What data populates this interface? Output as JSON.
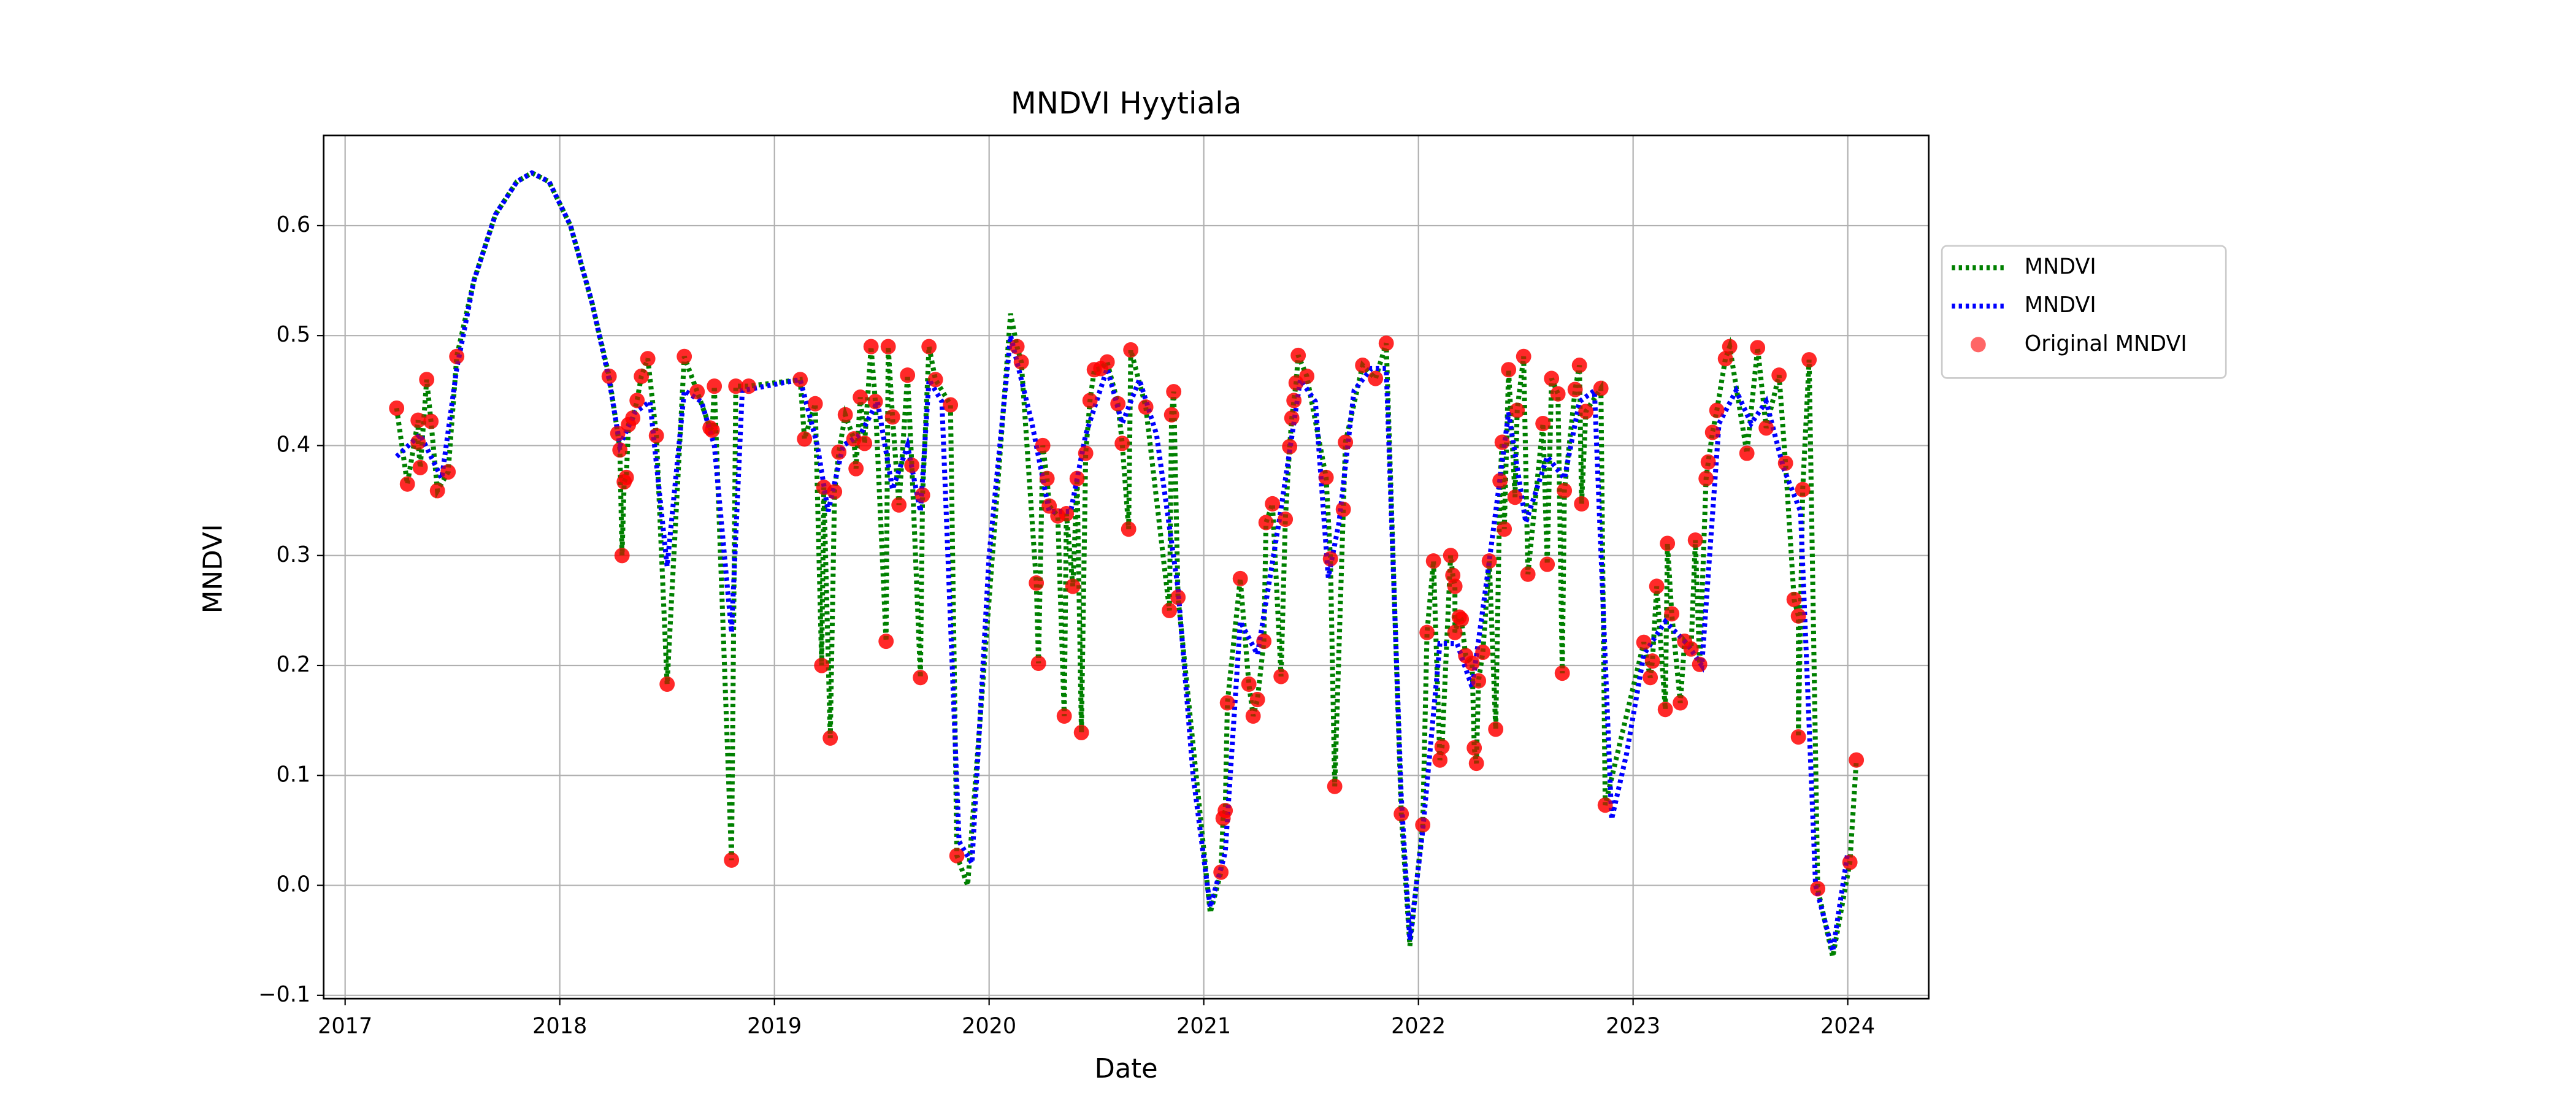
{
  "chart_data": {
    "type": "line",
    "title": "MNDVI Hyytiala",
    "x_label": "Date",
    "y_label": "MNDVI",
    "xlim": [
      2016.9,
      2024.377
    ],
    "xticks": [
      2017,
      2018,
      2019,
      2020,
      2021,
      2022,
      2023,
      2024
    ],
    "ylim": [
      -0.103,
      0.682
    ],
    "yticks": [
      {
        "value": -0.1,
        "label": "−0.1"
      },
      {
        "value": 0,
        "label": "0.0"
      },
      0.1,
      0.2,
      0.3,
      0.4,
      0.5,
      0.6
    ],
    "grid": true,
    "legend": "outside-right",
    "series": [
      {
        "name": "MNDVI",
        "type": "line",
        "color": "#008000",
        "x": [
          2017.24,
          2017.29,
          2017.34,
          2017.34,
          2017.35,
          2017.38,
          2017.4,
          2017.43,
          2017.48,
          2017.52,
          2017.6,
          2017.7,
          2017.8,
          2017.87,
          2017.95,
          2018.05,
          2018.15,
          2018.23,
          2018.27,
          2018.28,
          2018.29,
          2018.3,
          2018.31,
          2018.32,
          2018.34,
          2018.36,
          2018.38,
          2018.41,
          2018.45,
          2018.5,
          2018.58,
          2018.64,
          2018.7,
          2018.71,
          2018.72,
          2018.8,
          2018.82,
          2018.88,
          2019.12,
          2019.14,
          2019.19,
          2019.22,
          2019.23,
          2019.26,
          2019.28,
          2019.3,
          2019.33,
          2019.37,
          2019.38,
          2019.4,
          2019.42,
          2019.45,
          2019.47,
          2019.52,
          2019.53,
          2019.55,
          2019.58,
          2019.62,
          2019.64,
          2019.68,
          2019.69,
          2019.72,
          2019.75,
          2019.82,
          2019.85,
          2019.9,
          2020.1,
          2020.13,
          2020.15,
          2020.22,
          2020.23,
          2020.25,
          2020.27,
          2020.28,
          2020.32,
          2020.35,
          2020.36,
          2020.39,
          2020.41,
          2020.43,
          2020.45,
          2020.47,
          2020.49,
          2020.52,
          2020.55,
          2020.6,
          2020.62,
          2020.65,
          2020.66,
          2020.73,
          2020.84,
          2020.85,
          2020.86,
          2020.88,
          2021.03,
          2021.08,
          2021.09,
          2021.1,
          2021.11,
          2021.17,
          2021.21,
          2021.23,
          2021.25,
          2021.28,
          2021.29,
          2021.32,
          2021.36,
          2021.38,
          2021.4,
          2021.41,
          2021.42,
          2021.43,
          2021.44,
          2021.48,
          2021.57,
          2021.59,
          2021.61,
          2021.65,
          2021.66,
          2021.74,
          2021.8,
          2021.85,
          2021.92,
          2021.96,
          2022.02,
          2022.04,
          2022.07,
          2022.1,
          2022.11,
          2022.15,
          2022.16,
          2022.17,
          2022.17,
          2022.19,
          2022.2,
          2022.22,
          2022.25,
          2022.26,
          2022.27,
          2022.28,
          2022.3,
          2022.33,
          2022.36,
          2022.38,
          2022.39,
          2022.4,
          2022.42,
          2022.45,
          2022.46,
          2022.49,
          2022.51,
          2022.58,
          2022.6,
          2022.62,
          2022.65,
          2022.67,
          2022.68,
          2022.73,
          2022.75,
          2022.76,
          2022.78,
          2022.85,
          2022.87,
          2023.05,
          2023.08,
          2023.09,
          2023.11,
          2023.15,
          2023.16,
          2023.18,
          2023.22,
          2023.24,
          2023.27,
          2023.29,
          2023.31,
          2023.34,
          2023.35,
          2023.37,
          2023.39,
          2023.43,
          2023.45,
          2023.53,
          2023.58,
          2023.62,
          2023.68,
          2023.71,
          2023.75,
          2023.77,
          2023.77,
          2023.79,
          2023.82,
          2023.86,
          2023.93,
          2024.01,
          2024.04
        ],
        "values": [
          0.434,
          0.365,
          0.423,
          0.403,
          0.38,
          0.46,
          0.422,
          0.359,
          0.376,
          0.481,
          0.55,
          0.61,
          0.64,
          0.648,
          0.64,
          0.6,
          0.53,
          0.463,
          0.411,
          0.396,
          0.3,
          0.367,
          0.371,
          0.419,
          0.425,
          0.441,
          0.463,
          0.479,
          0.409,
          0.183,
          0.481,
          0.449,
          0.416,
          0.414,
          0.454,
          0.023,
          0.454,
          0.454,
          0.46,
          0.406,
          0.438,
          0.2,
          0.362,
          0.134,
          0.358,
          0.394,
          0.428,
          0.406,
          0.379,
          0.444,
          0.402,
          0.49,
          0.44,
          0.222,
          0.49,
          0.426,
          0.346,
          0.464,
          0.382,
          0.189,
          0.355,
          0.49,
          0.46,
          0.437,
          0.027,
          0.0,
          0.52,
          0.49,
          0.476,
          0.275,
          0.202,
          0.4,
          0.37,
          0.345,
          0.336,
          0.154,
          0.338,
          0.272,
          0.37,
          0.139,
          0.393,
          0.441,
          0.469,
          0.47,
          0.476,
          0.438,
          0.402,
          0.324,
          0.487,
          0.435,
          0.25,
          0.428,
          0.449,
          0.262,
          -0.025,
          0.012,
          0.061,
          0.068,
          0.166,
          0.279,
          0.183,
          0.154,
          0.169,
          0.222,
          0.33,
          0.347,
          0.19,
          0.333,
          0.399,
          0.425,
          0.441,
          0.457,
          0.482,
          0.463,
          0.371,
          0.297,
          0.09,
          0.342,
          0.403,
          0.473,
          0.461,
          0.493,
          0.065,
          -0.055,
          0.055,
          0.23,
          0.295,
          0.114,
          0.126,
          0.3,
          0.282,
          0.272,
          0.23,
          0.244,
          0.242,
          0.209,
          0.202,
          0.125,
          0.111,
          0.186,
          0.212,
          0.295,
          0.142,
          0.368,
          0.403,
          0.324,
          0.469,
          0.353,
          0.432,
          0.481,
          0.283,
          0.42,
          0.292,
          0.461,
          0.447,
          0.193,
          0.359,
          0.451,
          0.473,
          0.347,
          0.431,
          0.452,
          0.073,
          0.221,
          0.189,
          0.204,
          0.272,
          0.16,
          0.311,
          0.247,
          0.166,
          0.222,
          0.215,
          0.314,
          0.201,
          0.37,
          0.385,
          0.412,
          0.432,
          0.479,
          0.49,
          0.393,
          0.489,
          0.416,
          0.464,
          0.384,
          0.26,
          0.245,
          0.135,
          0.36,
          0.478,
          -0.003,
          -0.065,
          0.021,
          0.114
        ]
      },
      {
        "name": "MNDVI",
        "type": "line",
        "color": "#0000ff",
        "x": [
          2017.24,
          2017.35,
          2017.45,
          2017.52,
          2017.6,
          2017.7,
          2017.8,
          2017.87,
          2017.95,
          2018.05,
          2018.15,
          2018.23,
          2018.28,
          2018.35,
          2018.42,
          2018.5,
          2018.58,
          2018.66,
          2018.72,
          2018.8,
          2018.85,
          2019.12,
          2019.2,
          2019.25,
          2019.32,
          2019.4,
          2019.48,
          2019.55,
          2019.62,
          2019.68,
          2019.72,
          2019.78,
          2019.86,
          2019.92,
          2020.0,
          2020.1,
          2020.2,
          2020.28,
          2020.38,
          2020.45,
          2020.55,
          2020.62,
          2020.7,
          2020.78,
          2020.88,
          2020.95,
          2021.03,
          2021.1,
          2021.17,
          2021.25,
          2021.35,
          2021.45,
          2021.52,
          2021.58,
          2021.63,
          2021.7,
          2021.78,
          2021.85,
          2021.92,
          2021.96,
          2022.02,
          2022.1,
          2022.18,
          2022.25,
          2022.32,
          2022.42,
          2022.5,
          2022.6,
          2022.68,
          2022.75,
          2022.82,
          2022.9,
          2022.97,
          2023.05,
          2023.15,
          2023.25,
          2023.32,
          2023.4,
          2023.48,
          2023.55,
          2023.62,
          2023.7,
          2023.78,
          2023.85,
          2023.93,
          2024.0
        ],
        "values": [
          0.39,
          0.41,
          0.37,
          0.47,
          0.55,
          0.61,
          0.64,
          0.648,
          0.64,
          0.6,
          0.53,
          0.46,
          0.4,
          0.43,
          0.44,
          0.29,
          0.45,
          0.44,
          0.4,
          0.23,
          0.45,
          0.46,
          0.4,
          0.34,
          0.4,
          0.41,
          0.44,
          0.36,
          0.4,
          0.34,
          0.46,
          0.44,
          0.04,
          0.02,
          0.3,
          0.5,
          0.42,
          0.34,
          0.34,
          0.41,
          0.47,
          0.42,
          0.46,
          0.41,
          0.27,
          0.1,
          -0.02,
          0.03,
          0.24,
          0.21,
          0.33,
          0.46,
          0.44,
          0.28,
          0.33,
          0.45,
          0.47,
          0.47,
          0.08,
          -0.05,
          0.05,
          0.22,
          0.22,
          0.18,
          0.28,
          0.43,
          0.33,
          0.39,
          0.37,
          0.44,
          0.45,
          0.06,
          0.12,
          0.21,
          0.24,
          0.22,
          0.2,
          0.42,
          0.45,
          0.42,
          0.44,
          0.38,
          0.34,
          0.0,
          -0.06,
          0.03
        ]
      },
      {
        "name": "Original MNDVI",
        "type": "scatter",
        "color": "#ff0000",
        "x": [
          2017.24,
          2017.29,
          2017.34,
          2017.34,
          2017.35,
          2017.38,
          2017.4,
          2017.43,
          2017.48,
          2017.52,
          2018.23,
          2018.27,
          2018.28,
          2018.29,
          2018.3,
          2018.31,
          2018.32,
          2018.34,
          2018.36,
          2018.38,
          2018.41,
          2018.45,
          2018.5,
          2018.58,
          2018.64,
          2018.7,
          2018.71,
          2018.72,
          2018.8,
          2018.82,
          2018.88,
          2019.12,
          2019.14,
          2019.19,
          2019.22,
          2019.23,
          2019.26,
          2019.28,
          2019.3,
          2019.33,
          2019.37,
          2019.38,
          2019.4,
          2019.42,
          2019.45,
          2019.47,
          2019.52,
          2019.53,
          2019.55,
          2019.58,
          2019.62,
          2019.64,
          2019.68,
          2019.69,
          2019.72,
          2019.75,
          2019.82,
          2019.85,
          2020.13,
          2020.15,
          2020.22,
          2020.23,
          2020.25,
          2020.27,
          2020.28,
          2020.32,
          2020.35,
          2020.36,
          2020.39,
          2020.41,
          2020.43,
          2020.45,
          2020.47,
          2020.49,
          2020.52,
          2020.55,
          2020.6,
          2020.62,
          2020.65,
          2020.66,
          2020.73,
          2020.84,
          2020.85,
          2020.86,
          2020.88,
          2021.08,
          2021.09,
          2021.1,
          2021.11,
          2021.17,
          2021.21,
          2021.23,
          2021.25,
          2021.28,
          2021.29,
          2021.32,
          2021.36,
          2021.38,
          2021.4,
          2021.41,
          2021.42,
          2021.43,
          2021.44,
          2021.48,
          2021.57,
          2021.59,
          2021.61,
          2021.65,
          2021.66,
          2021.74,
          2021.8,
          2021.85,
          2021.92,
          2022.02,
          2022.04,
          2022.07,
          2022.1,
          2022.11,
          2022.15,
          2022.16,
          2022.17,
          2022.17,
          2022.19,
          2022.2,
          2022.22,
          2022.25,
          2022.26,
          2022.27,
          2022.28,
          2022.3,
          2022.33,
          2022.36,
          2022.38,
          2022.39,
          2022.4,
          2022.42,
          2022.45,
          2022.46,
          2022.49,
          2022.51,
          2022.58,
          2022.6,
          2022.62,
          2022.65,
          2022.67,
          2022.68,
          2022.73,
          2022.75,
          2022.76,
          2022.78,
          2022.85,
          2022.87,
          2023.05,
          2023.08,
          2023.09,
          2023.11,
          2023.15,
          2023.16,
          2023.18,
          2023.22,
          2023.24,
          2023.27,
          2023.29,
          2023.31,
          2023.34,
          2023.35,
          2023.37,
          2023.39,
          2023.43,
          2023.45,
          2023.53,
          2023.58,
          2023.62,
          2023.68,
          2023.71,
          2023.75,
          2023.77,
          2023.77,
          2023.79,
          2023.82,
          2023.86,
          2024.01,
          2024.04
        ],
        "values": [
          0.434,
          0.365,
          0.423,
          0.403,
          0.38,
          0.46,
          0.422,
          0.359,
          0.376,
          0.481,
          0.463,
          0.411,
          0.396,
          0.3,
          0.367,
          0.371,
          0.419,
          0.425,
          0.441,
          0.463,
          0.479,
          0.409,
          0.183,
          0.481,
          0.449,
          0.416,
          0.414,
          0.454,
          0.023,
          0.454,
          0.454,
          0.46,
          0.406,
          0.438,
          0.2,
          0.362,
          0.134,
          0.358,
          0.394,
          0.428,
          0.406,
          0.379,
          0.444,
          0.402,
          0.49,
          0.44,
          0.222,
          0.49,
          0.426,
          0.346,
          0.464,
          0.382,
          0.189,
          0.355,
          0.49,
          0.46,
          0.437,
          0.027,
          0.49,
          0.476,
          0.275,
          0.202,
          0.4,
          0.37,
          0.345,
          0.336,
          0.154,
          0.338,
          0.272,
          0.37,
          0.139,
          0.393,
          0.441,
          0.469,
          0.47,
          0.476,
          0.438,
          0.402,
          0.324,
          0.487,
          0.435,
          0.25,
          0.428,
          0.449,
          0.262,
          0.012,
          0.061,
          0.068,
          0.166,
          0.279,
          0.183,
          0.154,
          0.169,
          0.222,
          0.33,
          0.347,
          0.19,
          0.333,
          0.399,
          0.425,
          0.441,
          0.457,
          0.482,
          0.463,
          0.371,
          0.297,
          0.09,
          0.342,
          0.403,
          0.473,
          0.461,
          0.493,
          0.065,
          0.055,
          0.23,
          0.295,
          0.114,
          0.126,
          0.3,
          0.282,
          0.272,
          0.23,
          0.244,
          0.242,
          0.209,
          0.202,
          0.125,
          0.111,
          0.186,
          0.212,
          0.295,
          0.142,
          0.368,
          0.403,
          0.324,
          0.469,
          0.353,
          0.432,
          0.481,
          0.283,
          0.42,
          0.292,
          0.461,
          0.447,
          0.193,
          0.359,
          0.451,
          0.473,
          0.347,
          0.431,
          0.452,
          0.073,
          0.221,
          0.189,
          0.204,
          0.272,
          0.16,
          0.311,
          0.247,
          0.166,
          0.222,
          0.215,
          0.314,
          0.201,
          0.37,
          0.385,
          0.412,
          0.432,
          0.479,
          0.49,
          0.393,
          0.489,
          0.416,
          0.464,
          0.384,
          0.26,
          0.245,
          0.135,
          0.36,
          0.478,
          -0.003,
          0.021,
          0.114
        ]
      }
    ]
  }
}
